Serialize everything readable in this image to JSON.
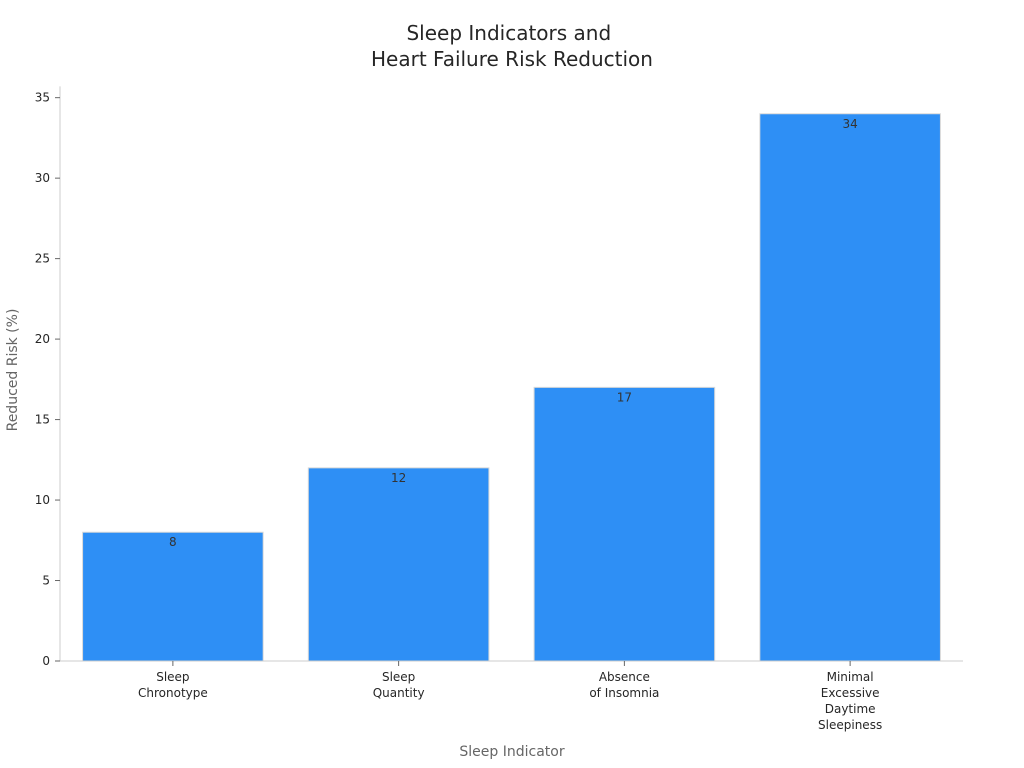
{
  "chart_data": {
    "type": "bar",
    "title_lines": [
      "Sleep Indicators and",
      "Heart Failure Risk Reduction"
    ],
    "xlabel": "Sleep Indicator",
    "ylabel": "Reduced Risk (%)",
    "categories": [
      [
        "Sleep",
        "Chronotype"
      ],
      [
        "Sleep",
        "Quantity"
      ],
      [
        "Absence",
        "of Insomnia"
      ],
      [
        "Minimal",
        "Excessive",
        "Daytime",
        "Sleepiness"
      ]
    ],
    "values": [
      8,
      12,
      17,
      34
    ],
    "data_labels": [
      "8",
      "12",
      "17",
      "34"
    ],
    "ylim": [
      0,
      35.7
    ],
    "yticks": [
      0,
      5,
      10,
      15,
      20,
      25,
      30,
      35
    ],
    "ytick_labels": [
      "0",
      "5",
      "10",
      "15",
      "20",
      "25",
      "30",
      "35"
    ],
    "bar_color": "#2e8ff5",
    "bar_edge_color": "#d9d9d9",
    "axis_color": "#cccccc",
    "grid": false,
    "legend": "none"
  }
}
